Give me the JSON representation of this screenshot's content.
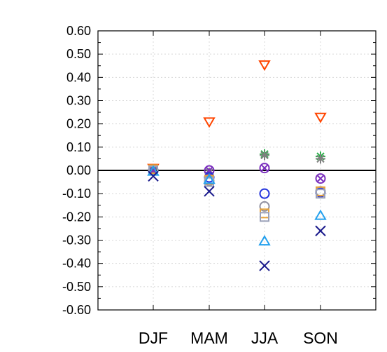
{
  "chart_data": {
    "type": "scatter",
    "title": "",
    "xlabel": "",
    "ylabel": "",
    "categories": [
      "DJF",
      "MAM",
      "JJA",
      "SON"
    ],
    "ylim": [
      -0.6,
      0.6
    ],
    "yticks": [
      0.6,
      0.5,
      0.4,
      0.3,
      0.2,
      0.1,
      0.0,
      -0.1,
      -0.2,
      -0.3,
      -0.4,
      -0.5,
      -0.6
    ],
    "ytick_labels": [
      "0.60",
      "0.50",
      "0.40",
      "0.30",
      "0.20",
      "0.10",
      "0.00",
      "-0.10",
      "-0.20",
      "-0.30",
      "-0.40",
      "-0.50",
      "-0.60"
    ],
    "grid": true,
    "zero_line": true,
    "legend": "none",
    "series": [
      {
        "marker": "triangle-down",
        "color": "#ff4500",
        "values": [
          0.01,
          0.21,
          0.455,
          0.23
        ]
      },
      {
        "marker": "asterisk",
        "color": "#2ab24a",
        "values": [
          0.005,
          -0.01,
          0.07,
          0.06
        ]
      },
      {
        "marker": "asterisk",
        "color": "#808080",
        "values": [
          0.005,
          -0.01,
          0.065,
          0.05
        ]
      },
      {
        "marker": "circle-x",
        "color": "#7b2fbe",
        "values": [
          0.0,
          0.0,
          0.01,
          -0.035
        ]
      },
      {
        "marker": "circle",
        "color": "#2233dd",
        "values": [
          0.0,
          -0.03,
          -0.1,
          -0.095
        ]
      },
      {
        "marker": "circle",
        "color": "#9090a0",
        "values": [
          0.0,
          -0.045,
          -0.155,
          -0.09
        ]
      },
      {
        "marker": "square",
        "color": "#e8a33a",
        "values": [
          0.005,
          -0.04,
          -0.185,
          -0.09
        ]
      },
      {
        "marker": "square",
        "color": "#9aa0b8",
        "values": [
          0.0,
          -0.05,
          -0.2,
          -0.1
        ]
      },
      {
        "marker": "triangle-up",
        "color": "#22a0ee",
        "values": [
          -0.005,
          -0.04,
          -0.305,
          -0.195
        ]
      },
      {
        "marker": "x",
        "color": "#1a1a8c",
        "values": [
          -0.025,
          -0.09,
          -0.41,
          -0.26
        ]
      }
    ]
  }
}
